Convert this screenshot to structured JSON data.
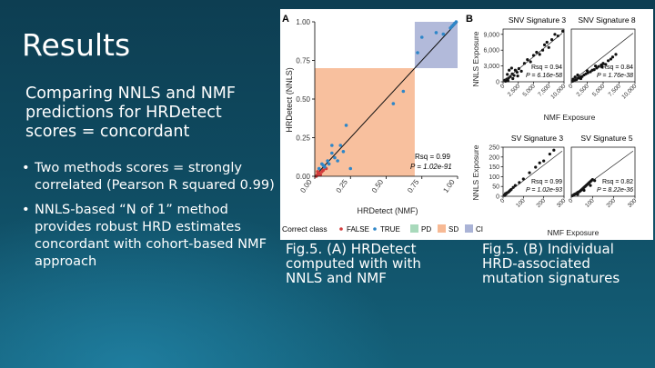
{
  "slide": {
    "title": "Results",
    "subtitle": "Comparing NNLS and NMF predictions for HRDetect scores = concordant",
    "bullets": [
      "Two methods scores = strongly correlated (Pearson R squared 0.99)",
      "NNLS-based “N of 1” method provides robust HRD estimates concordant with cohort-based NMF approach"
    ],
    "caption_a": "Fig.5. (A)  HRDetect computed with with NNLS and NMF",
    "caption_b": "Fig.5. (B) Individual HRD-associated mutation signatures"
  },
  "colors": {
    "pd": "#a8d9bb",
    "sd": "#f7b994",
    "ci": "#aab3d6",
    "false_point": "#d23b3b",
    "true_point": "#2e86c8",
    "fit": "#111111"
  },
  "chart_data": [
    {
      "panel": "A",
      "type": "scatter",
      "xlabel": "HRDetect (NMF)",
      "ylabel": "HRDetect (NNLS)",
      "xlim": [
        0,
        1
      ],
      "ylim": [
        0,
        1
      ],
      "xticks": [
        "0.00",
        "0.25",
        "0.50",
        "0.75",
        "1.00"
      ],
      "yticks": [
        "0.00",
        "0.25",
        "0.50",
        "0.75",
        "1.00"
      ],
      "annotation": [
        "Rsq = 0.99",
        "P = 1.02e-91"
      ],
      "regions": [
        {
          "class": "SD",
          "x": [
            0,
            0.7
          ],
          "y": [
            0,
            0.7
          ]
        },
        {
          "class": "CI",
          "x": [
            0.7,
            1.0
          ],
          "y": [
            0.7,
            1.0
          ]
        }
      ],
      "legend": {
        "title": "Correct class",
        "entries": [
          "FALSE",
          "TRUE"
        ],
        "regions": [
          "PD",
          "SD",
          "CI"
        ],
        "placement": "bottom"
      },
      "series": [
        {
          "name": "FALSE",
          "points": [
            [
              0.02,
              0.01
            ],
            [
              0.03,
              0.02
            ],
            [
              0.05,
              0.03
            ],
            [
              0.04,
              0.01
            ],
            [
              0.06,
              0.04
            ],
            [
              0.01,
              0.0
            ],
            [
              0.08,
              0.05
            ],
            [
              0.02,
              0.03
            ]
          ]
        },
        {
          "name": "TRUE",
          "points": [
            [
              0.03,
              0.05
            ],
            [
              0.05,
              0.08
            ],
            [
              0.07,
              0.06
            ],
            [
              0.1,
              0.08
            ],
            [
              0.12,
              0.15
            ],
            [
              0.14,
              0.12
            ],
            [
              0.16,
              0.1
            ],
            [
              0.18,
              0.2
            ],
            [
              0.2,
              0.16
            ],
            [
              0.22,
              0.33
            ],
            [
              0.12,
              0.2
            ],
            [
              0.09,
              0.1
            ],
            [
              0.06,
              0.07
            ],
            [
              0.25,
              0.05
            ],
            [
              0.62,
              0.55
            ],
            [
              0.55,
              0.47
            ],
            [
              0.72,
              0.8
            ],
            [
              0.75,
              0.9
            ],
            [
              0.85,
              0.93
            ],
            [
              0.9,
              0.92
            ],
            [
              0.95,
              0.96
            ],
            [
              0.97,
              0.98
            ],
            [
              0.98,
              0.99
            ],
            [
              0.99,
              1.0
            ],
            [
              0.96,
              0.97
            ]
          ]
        }
      ]
    },
    {
      "panel": "B",
      "type": "scatter",
      "ylabel_top": "NNLS Exposure",
      "ylabel_bottom": "NNLS Exposure",
      "xlabel_top": "NMF Exposure",
      "xlabel_bottom": "NMF Exposure",
      "facets": [
        {
          "title": "SNV Signature 3",
          "xlim": [
            0,
            10000
          ],
          "ylim": [
            0,
            10000
          ],
          "xticks": [
            0,
            2500,
            5000,
            7500,
            10000
          ],
          "xticklabels": [
            "0",
            "2,500",
            "5,000",
            "7,500",
            "10,000"
          ],
          "yticks": [
            0,
            3000,
            6000,
            9000
          ],
          "yticklabels": [
            "0",
            "3,000",
            "6,000",
            "9,000"
          ],
          "annotation": [
            "Rsq = 0.94",
            "P = 6.16e-58"
          ],
          "points": [
            [
              300,
              300
            ],
            [
              600,
              500
            ],
            [
              900,
              700
            ],
            [
              1200,
              1000
            ],
            [
              1500,
              1500
            ],
            [
              1800,
              1200
            ],
            [
              2000,
              2200
            ],
            [
              2300,
              1800
            ],
            [
              2600,
              2500
            ],
            [
              3000,
              2000
            ],
            [
              1000,
              2200
            ],
            [
              1400,
              2600
            ],
            [
              700,
              1400
            ],
            [
              3500,
              3500
            ],
            [
              4000,
              4200
            ],
            [
              4500,
              3800
            ],
            [
              5000,
              5000
            ],
            [
              5500,
              5600
            ],
            [
              6000,
              5200
            ],
            [
              6500,
              6000
            ],
            [
              6800,
              7000
            ],
            [
              7200,
              7500
            ],
            [
              7500,
              6500
            ],
            [
              8000,
              8000
            ],
            [
              8500,
              9000
            ],
            [
              9000,
              8700
            ],
            [
              9800,
              9600
            ],
            [
              400,
              100
            ],
            [
              800,
              200
            ],
            [
              1600,
              600
            ],
            [
              2400,
              1100
            ]
          ]
        },
        {
          "title": "SNV Signature 8",
          "xlim": [
            0,
            10000
          ],
          "ylim": [
            0,
            10000
          ],
          "xticks": [
            0,
            2500,
            5000,
            7500,
            10000
          ],
          "xticklabels": [
            "0",
            "2,500",
            "5,000",
            "7,500",
            "10,000"
          ],
          "annotation": [
            "Rsq = 0.84",
            "P = 1.76e-38"
          ],
          "points": [
            [
              200,
              100
            ],
            [
              500,
              300
            ],
            [
              800,
              400
            ],
            [
              1100,
              700
            ],
            [
              1400,
              900
            ],
            [
              1700,
              1000
            ],
            [
              2000,
              1300
            ],
            [
              2300,
              1500
            ],
            [
              2600,
              1700
            ],
            [
              3000,
              1900
            ],
            [
              3300,
              2200
            ],
            [
              3600,
              2300
            ],
            [
              4000,
              2600
            ],
            [
              4300,
              2900
            ],
            [
              4700,
              3200
            ],
            [
              5000,
              3500
            ],
            [
              5400,
              3300
            ],
            [
              5800,
              4000
            ],
            [
              6200,
              4300
            ],
            [
              6500,
              4700
            ],
            [
              7000,
              5200
            ],
            [
              600,
              900
            ],
            [
              1000,
              1300
            ],
            [
              1500,
              600
            ],
            [
              2500,
              2100
            ],
            [
              3800,
              3000
            ],
            [
              4800,
              2800
            ],
            [
              300,
              500
            ]
          ]
        },
        {
          "title": "SV Signature 3",
          "xlim": [
            0,
            300
          ],
          "ylim": [
            0,
            250
          ],
          "xticks": [
            0,
            100,
            200,
            300
          ],
          "xticklabels": [
            "0",
            "100",
            "200",
            "300"
          ],
          "yticks": [
            0,
            50,
            100,
            150,
            200,
            250
          ],
          "yticklabels": [
            "0",
            "50",
            "100",
            "150",
            "200",
            "250"
          ],
          "annotation": [
            "Rsq = 0.99",
            "P = 1.02e-93"
          ],
          "points": [
            [
              5,
              5
            ],
            [
              10,
              8
            ],
            [
              15,
              12
            ],
            [
              20,
              18
            ],
            [
              25,
              20
            ],
            [
              30,
              25
            ],
            [
              40,
              35
            ],
            [
              50,
              45
            ],
            [
              60,
              55
            ],
            [
              80,
              70
            ],
            [
              100,
              88
            ],
            [
              130,
              120
            ],
            [
              160,
              148
            ],
            [
              180,
              170
            ],
            [
              200,
              180
            ],
            [
              230,
              215
            ],
            [
              250,
              235
            ],
            [
              12,
              14
            ],
            [
              8,
              4
            ],
            [
              35,
              30
            ]
          ]
        },
        {
          "title": "SV Signature 5",
          "xlim": [
            0,
            300
          ],
          "ylim": [
            0,
            250
          ],
          "xticks": [
            0,
            100,
            200,
            300
          ],
          "xticklabels": [
            "0",
            "100",
            "200",
            "300"
          ],
          "annotation": [
            "Rsq = 0.82",
            "P = 8.22e-36"
          ],
          "points": [
            [
              5,
              3
            ],
            [
              10,
              6
            ],
            [
              15,
              10
            ],
            [
              20,
              12
            ],
            [
              25,
              15
            ],
            [
              30,
              20
            ],
            [
              35,
              22
            ],
            [
              40,
              25
            ],
            [
              45,
              30
            ],
            [
              50,
              35
            ],
            [
              55,
              40
            ],
            [
              60,
              45
            ],
            [
              65,
              50
            ],
            [
              70,
              55
            ],
            [
              75,
              60
            ],
            [
              80,
              65
            ],
            [
              85,
              70
            ],
            [
              90,
              75
            ],
            [
              95,
              80
            ],
            [
              100,
              85
            ],
            [
              30,
              10
            ],
            [
              60,
              30
            ],
            [
              90,
              55
            ],
            [
              110,
              80
            ]
          ]
        }
      ]
    }
  ]
}
